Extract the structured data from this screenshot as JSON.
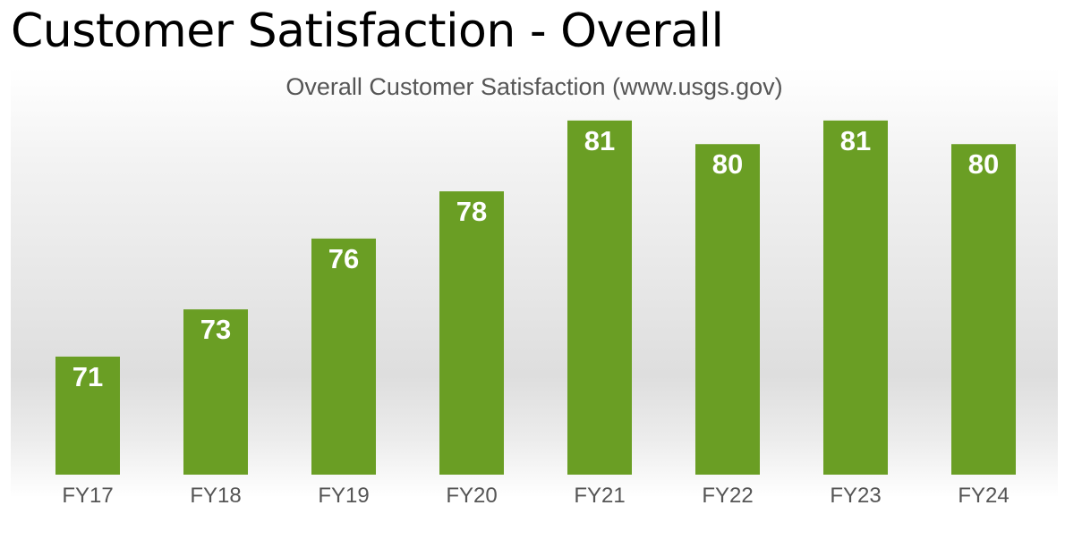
{
  "page": {
    "title": "Customer Satisfaction - Overall"
  },
  "chart_data": {
    "type": "bar",
    "title": "Overall Customer Satisfaction (www.usgs.gov)",
    "xlabel": "",
    "ylabel": "",
    "categories": [
      "FY17",
      "FY18",
      "FY19",
      "FY20",
      "FY21",
      "FY22",
      "FY23",
      "FY24"
    ],
    "values": [
      71,
      73,
      76,
      78,
      81,
      80,
      81,
      80
    ],
    "value_labels_inside_bars": true,
    "ylim": [
      66,
      83
    ],
    "grid": false,
    "legend": "none",
    "colors": {
      "bar": "#6a9e24",
      "value_label": "#ffffff",
      "tick_label": "#555555",
      "title": "#555555"
    }
  }
}
